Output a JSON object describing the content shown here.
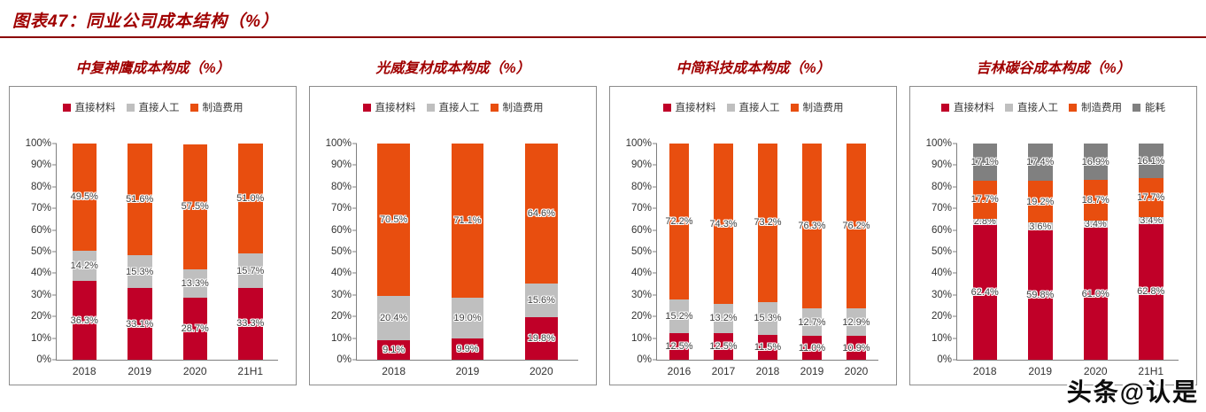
{
  "header": {
    "title": "图表47：同业公司成本结构（%）"
  },
  "watermark": "头条@认是",
  "palette": {
    "direct_material": "#C00028",
    "direct_labor": "#BFBFBF",
    "manufacturing_cost": "#E84E0F",
    "energy": "#808080",
    "title_red": "#A00000",
    "rule_red": "#8B0000"
  },
  "chart_data": [
    {
      "type": "bar",
      "stacked": true,
      "title": "中复神鹰成本构成（%）",
      "categories": [
        "2018",
        "2019",
        "2020",
        "21H1"
      ],
      "series": [
        {
          "name": "直接材料",
          "color": "#C00028",
          "values": [
            36.3,
            33.1,
            28.7,
            33.3
          ]
        },
        {
          "name": "直接人工",
          "color": "#BFBFBF",
          "values": [
            14.2,
            15.3,
            13.3,
            15.7
          ]
        },
        {
          "name": "制造费用",
          "color": "#E84E0F",
          "values": [
            49.5,
            51.6,
            57.5,
            51.0
          ]
        }
      ],
      "ylabel": "",
      "ylim": [
        0,
        100
      ],
      "yticks": [
        "100%",
        "90%",
        "80%",
        "70%",
        "60%",
        "50%",
        "40%",
        "30%",
        "20%",
        "10%",
        "0%"
      ],
      "grid": false,
      "legend_position": "top"
    },
    {
      "type": "bar",
      "stacked": true,
      "title": "光威复材成本构成（%）",
      "categories": [
        "2018",
        "2019",
        "2020"
      ],
      "series": [
        {
          "name": "直接材料",
          "color": "#C00028",
          "values": [
            9.1,
            9.9,
            19.8
          ]
        },
        {
          "name": "直接人工",
          "color": "#BFBFBF",
          "values": [
            20.4,
            19.0,
            15.6
          ]
        },
        {
          "name": "制造费用",
          "color": "#E84E0F",
          "values": [
            70.5,
            71.1,
            64.6
          ]
        }
      ],
      "ylabel": "",
      "ylim": [
        0,
        100
      ],
      "yticks": [
        "100%",
        "90%",
        "80%",
        "70%",
        "60%",
        "50%",
        "40%",
        "30%",
        "20%",
        "10%",
        "0%"
      ],
      "grid": false,
      "legend_position": "top"
    },
    {
      "type": "bar",
      "stacked": true,
      "title": "中简科技成本构成（%）",
      "categories": [
        "2016",
        "2017",
        "2018",
        "2019",
        "2020"
      ],
      "series": [
        {
          "name": "直接材料",
          "color": "#C00028",
          "values": [
            12.5,
            12.5,
            11.5,
            11.0,
            10.9
          ]
        },
        {
          "name": "直接人工",
          "color": "#BFBFBF",
          "values": [
            15.2,
            13.2,
            15.3,
            12.7,
            12.9
          ]
        },
        {
          "name": "制造费用",
          "color": "#E84E0F",
          "values": [
            72.2,
            74.3,
            73.2,
            76.3,
            76.2
          ]
        }
      ],
      "ylabel": "",
      "ylim": [
        0,
        100
      ],
      "yticks": [
        "100%",
        "90%",
        "80%",
        "70%",
        "60%",
        "50%",
        "40%",
        "30%",
        "20%",
        "10%",
        "0%"
      ],
      "grid": false,
      "legend_position": "top"
    },
    {
      "type": "bar",
      "stacked": true,
      "title": "吉林碳谷成本构成（%）",
      "categories": [
        "2018",
        "2019",
        "2020",
        "21H1"
      ],
      "series": [
        {
          "name": "直接材料",
          "color": "#C00028",
          "values": [
            62.4,
            59.8,
            61.0,
            62.8
          ]
        },
        {
          "name": "直接人工",
          "color": "#BFBFBF",
          "values": [
            2.8,
            3.6,
            3.4,
            3.4
          ]
        },
        {
          "name": "制造费用",
          "color": "#E84E0F",
          "values": [
            17.7,
            19.2,
            18.7,
            17.7
          ]
        },
        {
          "name": "能耗",
          "color": "#808080",
          "values": [
            17.1,
            17.4,
            16.9,
            16.1
          ]
        }
      ],
      "ylabel": "",
      "ylim": [
        0,
        100
      ],
      "yticks": [
        "100%",
        "90%",
        "80%",
        "70%",
        "60%",
        "50%",
        "40%",
        "30%",
        "20%",
        "10%",
        "0%"
      ],
      "grid": false,
      "legend_position": "top"
    }
  ]
}
